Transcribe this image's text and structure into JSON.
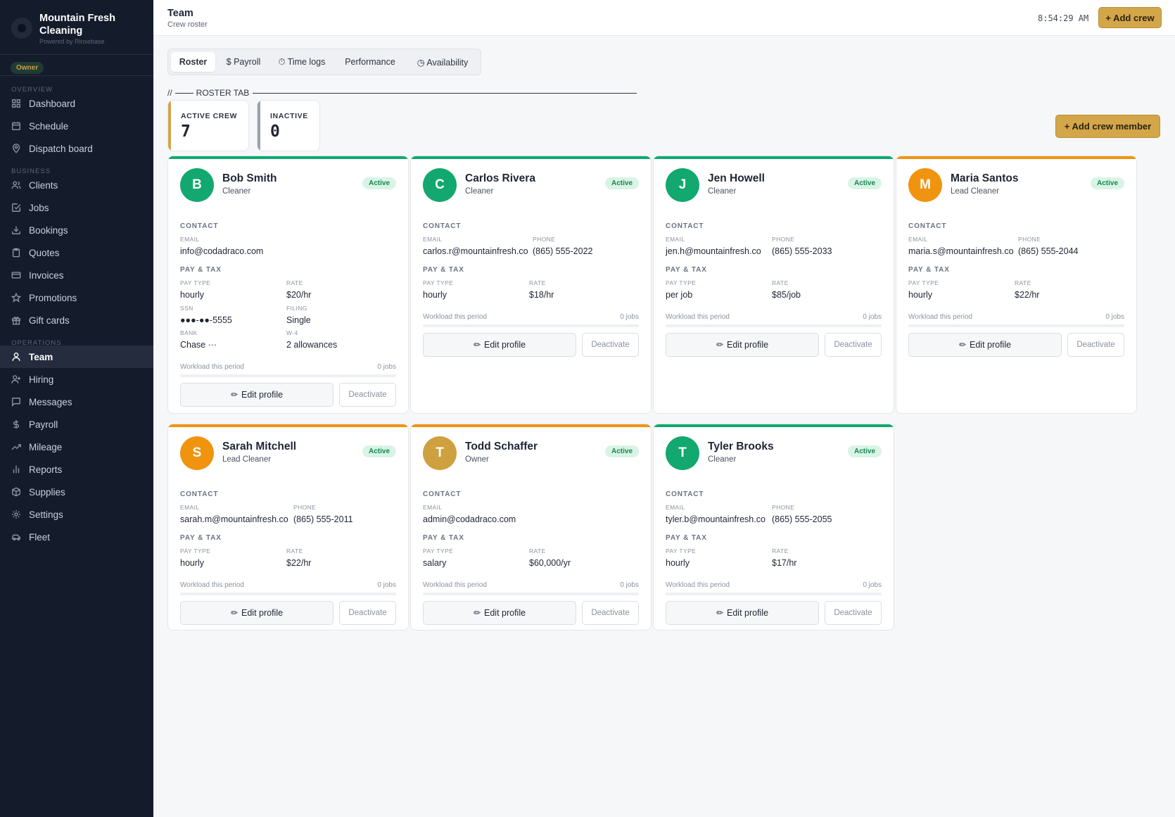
{
  "brand": {
    "name": "Mountain Fresh Cleaning",
    "powered_by": "Powered by Rinsebase",
    "role": "Owner"
  },
  "nav": {
    "overview_label": "OVERVIEW",
    "business_label": "BUSINESS",
    "operations_label": "OPERATIONS",
    "items": [
      {
        "label": "Dashboard",
        "icon": "grid-icon"
      },
      {
        "label": "Schedule",
        "icon": "calendar-icon"
      },
      {
        "label": "Dispatch board",
        "icon": "map-pin-icon"
      },
      {
        "label": "Clients",
        "icon": "users-icon"
      },
      {
        "label": "Jobs",
        "icon": "check-square-icon"
      },
      {
        "label": "Bookings",
        "icon": "download-icon"
      },
      {
        "label": "Quotes",
        "icon": "clipboard-icon"
      },
      {
        "label": "Invoices",
        "icon": "credit-card-icon"
      },
      {
        "label": "Promotions",
        "icon": "star-icon"
      },
      {
        "label": "Gift cards",
        "icon": "gift-icon"
      },
      {
        "label": "Team",
        "icon": "user-icon"
      },
      {
        "label": "Hiring",
        "icon": "user-plus-icon"
      },
      {
        "label": "Messages",
        "icon": "message-icon"
      },
      {
        "label": "Payroll",
        "icon": "dollar-icon"
      },
      {
        "label": "Mileage",
        "icon": "trending-up-icon"
      },
      {
        "label": "Reports",
        "icon": "bar-chart-icon"
      },
      {
        "label": "Supplies",
        "icon": "box-icon"
      },
      {
        "label": "Settings",
        "icon": "gear-icon"
      },
      {
        "label": "Fleet",
        "icon": "car-icon"
      }
    ]
  },
  "header": {
    "title": "Team",
    "subtitle": "Crew roster",
    "time": "8:54:29 AM",
    "add_crew_label": "+ Add crew"
  },
  "tabs": [
    "Roster",
    "$ Payroll",
    "⏱ Time logs",
    "Performance",
    "◷ Availability"
  ],
  "roster_tab_label": "ROSTER TAB",
  "roster_prefix": "//",
  "stats": {
    "active": {
      "label": "ACTIVE CREW",
      "value": "7"
    },
    "inactive": {
      "label": "INACTIVE",
      "value": "0"
    }
  },
  "add_member_label": "+ Add crew member",
  "labels": {
    "contact": "CONTACT",
    "pay_tax": "PAY & TAX",
    "email": "EMAIL",
    "phone": "PHONE",
    "pay_type": "PAY TYPE",
    "rate": "RATE",
    "ssn": "SSN",
    "filing": "FILING",
    "bank": "BANK",
    "w4": "W-4",
    "workload": "Workload this period",
    "edit": "Edit profile",
    "deactivate": "Deactivate",
    "pen": "✏"
  },
  "colors": {
    "green": "#12a86f",
    "orange": "#f0940f",
    "gold": "#cfa03e"
  },
  "crew": [
    {
      "initial": "B",
      "name": "Bob Smith",
      "role": "Cleaner",
      "status": "Active",
      "avatar_color": "green",
      "bar_color": "green",
      "email": "info@codadraco.com",
      "phone": "",
      "pay_type": "hourly",
      "rate": "$20/hr",
      "ssn": "●●●-●●-5555",
      "filing": "Single",
      "bank": "Chase ···",
      "w4": "2 allowances",
      "jobs": "0 jobs"
    },
    {
      "initial": "C",
      "name": "Carlos Rivera",
      "role": "Cleaner",
      "status": "Active",
      "avatar_color": "green",
      "bar_color": "green",
      "email": "carlos.r@mountainfresh.co",
      "phone": "(865) 555-2022",
      "pay_type": "hourly",
      "rate": "$18/hr",
      "jobs": "0 jobs"
    },
    {
      "initial": "J",
      "name": "Jen Howell",
      "role": "Cleaner",
      "status": "Active",
      "avatar_color": "green",
      "bar_color": "green",
      "email": "jen.h@mountainfresh.co",
      "phone": "(865) 555-2033",
      "pay_type": "per job",
      "rate": "$85/job",
      "jobs": "0 jobs"
    },
    {
      "initial": "M",
      "name": "Maria Santos",
      "role": "Lead Cleaner",
      "status": "Active",
      "avatar_color": "orange",
      "bar_color": "orange",
      "email": "maria.s@mountainfresh.co",
      "phone": "(865) 555-2044",
      "pay_type": "hourly",
      "rate": "$22/hr",
      "jobs": "0 jobs"
    },
    {
      "initial": "S",
      "name": "Sarah Mitchell",
      "role": "Lead Cleaner",
      "status": "Active",
      "avatar_color": "orange",
      "bar_color": "orange",
      "email": "sarah.m@mountainfresh.co",
      "phone": "(865) 555-2011",
      "pay_type": "hourly",
      "rate": "$22/hr",
      "jobs": "0 jobs"
    },
    {
      "initial": "T",
      "name": "Todd Schaffer",
      "role": "Owner",
      "status": "Active",
      "avatar_color": "gold",
      "bar_color": "orange",
      "email": "admin@codadraco.com",
      "phone": "",
      "pay_type": "salary",
      "rate": "$60,000/yr",
      "jobs": "0 jobs"
    },
    {
      "initial": "T",
      "name": "Tyler Brooks",
      "role": "Cleaner",
      "status": "Active",
      "avatar_color": "green",
      "bar_color": "green",
      "email": "tyler.b@mountainfresh.co",
      "phone": "(865) 555-2055",
      "pay_type": "hourly",
      "rate": "$17/hr",
      "jobs": "0 jobs"
    }
  ]
}
